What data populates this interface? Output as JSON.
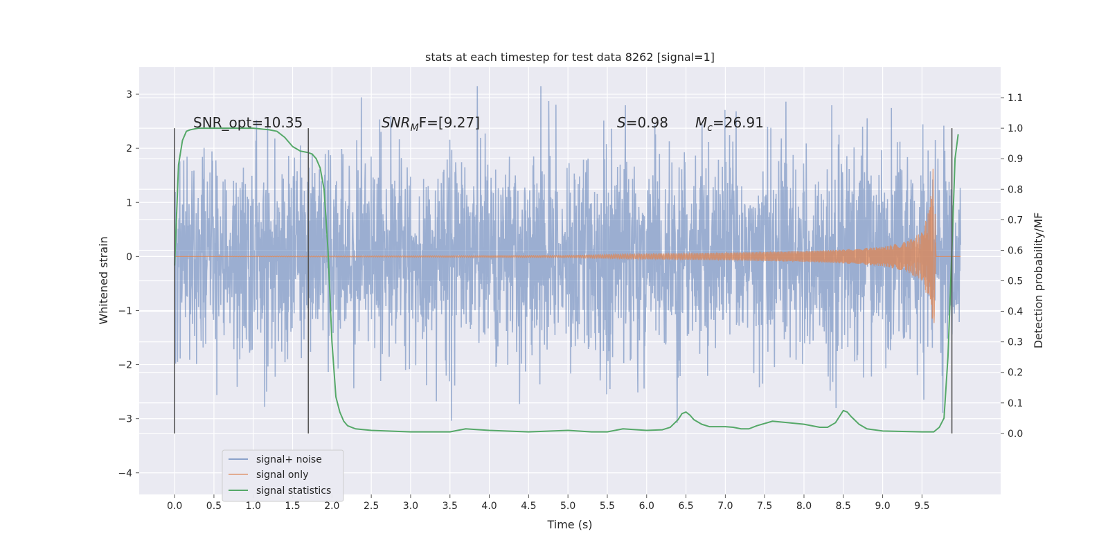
{
  "chart_data": {
    "type": "line",
    "title": "stats at each timestep for test data 8262 [signal=1]",
    "xlabel": "Time (s)",
    "ylabel_left": "Whitened strain",
    "ylabel_right": "Detection probability/MF",
    "xlim": [
      -0.45,
      10.5
    ],
    "ylim_left": [
      -4.4,
      3.5
    ],
    "ylim_right": [
      -0.2,
      1.2
    ],
    "x_ticks": [
      "0.0",
      "0.5",
      "1.0",
      "1.5",
      "2.0",
      "2.5",
      "3.0",
      "3.5",
      "4.0",
      "4.5",
      "5.0",
      "5.5",
      "6.0",
      "6.5",
      "7.0",
      "7.5",
      "8.0",
      "8.5",
      "9.0",
      "9.5"
    ],
    "y_ticks_left": [
      "3",
      "2",
      "1",
      "0",
      "−1",
      "−2",
      "−3",
      "−4"
    ],
    "y_ticks_right": [
      "1.1",
      "1.0",
      "0.9",
      "0.8",
      "0.7",
      "0.6",
      "0.5",
      "0.4",
      "0.3",
      "0.2",
      "0.1",
      "0.0"
    ],
    "grid": true,
    "legend_position": "lower-left",
    "annotations": {
      "snr_opt": "SNR_opt=10.35",
      "snr_mf_main": "SNR",
      "snr_mf_sub": "M",
      "snr_mf_rest": "F=[9.27]",
      "s_label": "S",
      "s_value": "=0.98",
      "mc_label": "M",
      "mc_sub": "c",
      "mc_value": "=26.91"
    },
    "vertical_markers": [
      0.0,
      1.7,
      9.88
    ],
    "series": [
      {
        "name": "signal+ noise",
        "color": "#4c72b0",
        "axis": "left",
        "noise_band_approx": [
          -1.8,
          1.8
        ],
        "x_range": [
          0.0,
          9.99
        ]
      },
      {
        "name": "signal only",
        "color": "#dd8452",
        "axis": "left",
        "x": [
          0.0,
          5.0,
          6.0,
          7.0,
          8.0,
          8.5,
          9.0,
          9.3,
          9.5,
          9.6,
          9.65,
          9.68,
          9.99
        ],
        "amplitude": [
          0.0,
          0.02,
          0.05,
          0.07,
          0.1,
          0.13,
          0.18,
          0.28,
          0.45,
          0.9,
          1.8,
          0.0,
          0.0
        ]
      },
      {
        "name": "signal statistics",
        "color": "#55a868",
        "axis": "right",
        "x": [
          0.0,
          0.05,
          0.1,
          0.15,
          0.2,
          0.3,
          0.5,
          0.8,
          1.0,
          1.2,
          1.3,
          1.4,
          1.5,
          1.6,
          1.7,
          1.75,
          1.8,
          1.85,
          1.9,
          1.95,
          2.0,
          2.05,
          2.1,
          2.15,
          2.2,
          2.3,
          2.5,
          3.0,
          3.5,
          3.7,
          4.0,
          4.5,
          5.0,
          5.3,
          5.5,
          5.7,
          6.0,
          6.2,
          6.3,
          6.4,
          6.45,
          6.5,
          6.55,
          6.6,
          6.7,
          6.8,
          7.0,
          7.1,
          7.2,
          7.3,
          7.4,
          7.6,
          7.8,
          8.0,
          8.2,
          8.3,
          8.4,
          8.45,
          8.5,
          8.55,
          8.6,
          8.7,
          8.8,
          9.0,
          9.5,
          9.65,
          9.72,
          9.78,
          9.83,
          9.88,
          9.92,
          9.96
        ],
        "values": [
          0.55,
          0.88,
          0.96,
          0.99,
          0.995,
          1.0,
          1.0,
          1.0,
          1.0,
          0.995,
          0.99,
          0.97,
          0.94,
          0.925,
          0.92,
          0.915,
          0.9,
          0.87,
          0.8,
          0.6,
          0.3,
          0.12,
          0.07,
          0.04,
          0.025,
          0.015,
          0.01,
          0.005,
          0.005,
          0.015,
          0.01,
          0.005,
          0.01,
          0.005,
          0.005,
          0.015,
          0.01,
          0.012,
          0.02,
          0.045,
          0.065,
          0.07,
          0.06,
          0.045,
          0.03,
          0.022,
          0.022,
          0.02,
          0.015,
          0.015,
          0.025,
          0.04,
          0.035,
          0.03,
          0.02,
          0.02,
          0.035,
          0.055,
          0.075,
          0.07,
          0.055,
          0.03,
          0.015,
          0.008,
          0.005,
          0.005,
          0.02,
          0.05,
          0.25,
          0.6,
          0.9,
          0.98
        ]
      }
    ]
  }
}
